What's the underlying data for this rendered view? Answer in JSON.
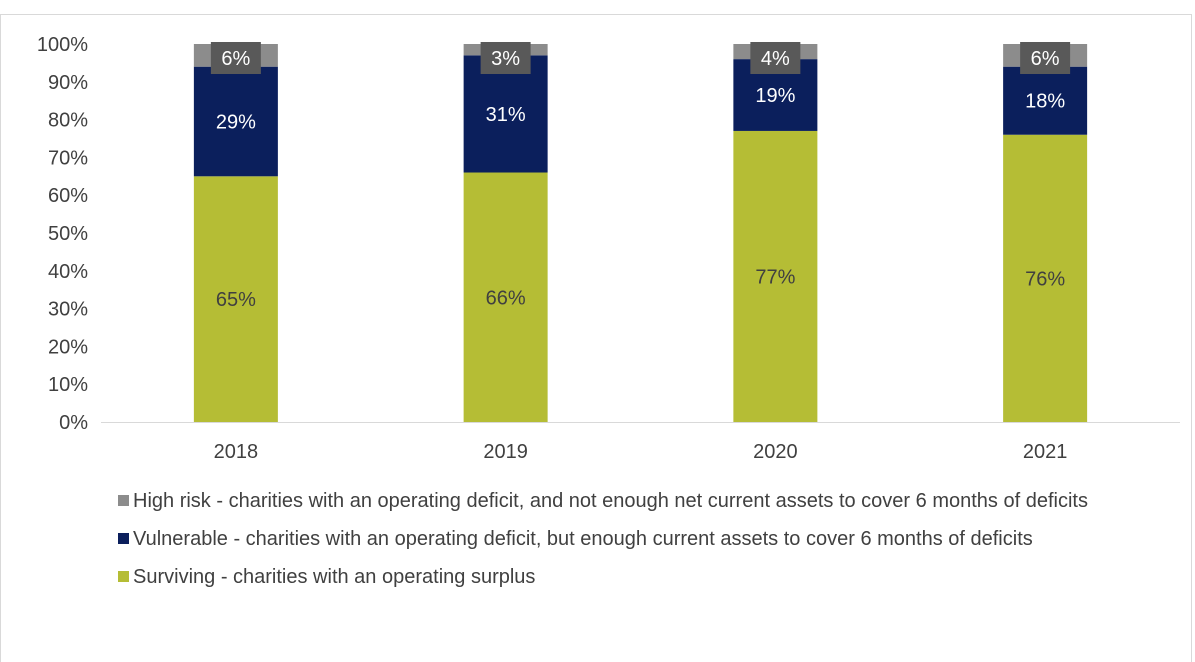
{
  "chart_data": {
    "type": "bar",
    "stacked": true,
    "categories": [
      "2018",
      "2019",
      "2020",
      "2021"
    ],
    "series": [
      {
        "name": "Surviving  - charities with an operating surplus",
        "color": "#b5bd35",
        "label_color": "#404040",
        "values": [
          65,
          66,
          77,
          76
        ],
        "labels": [
          "65%",
          "66%",
          "77%",
          "76%"
        ]
      },
      {
        "name": "Vulnerable - charities with an operating deficit, but enough current assets to cover 6 months of deficits",
        "color": "#0b1f5c",
        "label_color": "#ffffff",
        "values": [
          29,
          31,
          19,
          18
        ],
        "labels": [
          "29%",
          "31%",
          "19%",
          "18%"
        ]
      },
      {
        "name": "High risk - charities with an operating deficit, and not enough net current assets to cover 6 months of deficits",
        "color": "#8c8c8c",
        "label_color": "#ffffff",
        "values": [
          6,
          3,
          4,
          6
        ],
        "labels": [
          "6%",
          "3%",
          "4%",
          "6%"
        ]
      }
    ],
    "ylim": [
      0,
      100
    ],
    "yticks": [
      "0%",
      "10%",
      "20%",
      "30%",
      "40%",
      "50%",
      "60%",
      "70%",
      "80%",
      "90%",
      "100%"
    ],
    "grid": false,
    "legend_position": "bottom",
    "title": "",
    "xlabel": "",
    "ylabel": ""
  },
  "legend": {
    "items": [
      {
        "label": "High risk - charities with an operating deficit, and not enough net current assets to cover 6 months of deficits",
        "color": "#8c8c8c"
      },
      {
        "label": "Vulnerable - charities with an operating deficit, but enough current assets to cover 6 months of deficits",
        "color": "#0b1f5c"
      },
      {
        "label": "Surviving  - charities with an operating surplus",
        "color": "#b5bd35"
      }
    ]
  }
}
